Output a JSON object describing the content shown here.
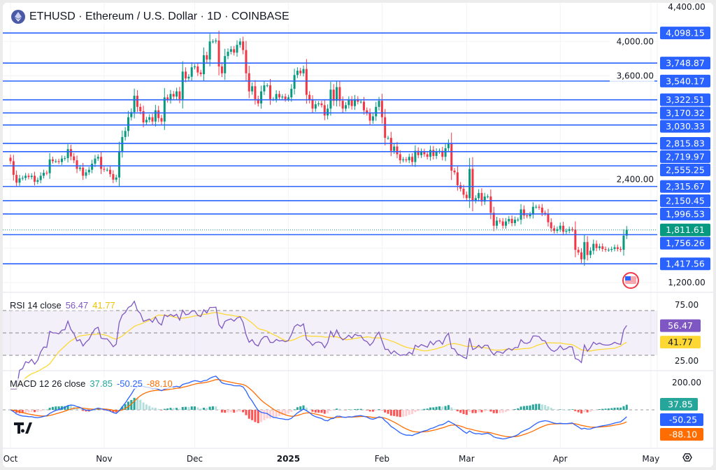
{
  "header": {
    "title": "ETHUSD · Ethereum / U.S. Dollar · 1D · COINBASE"
  },
  "colors": {
    "up": "#089981",
    "down": "#f23645",
    "level": "#2962ff",
    "rsi": "#7e57c2",
    "rsi_ma": "#fdd835",
    "macd": "#2962ff",
    "signal": "#ff6d00",
    "hist_up": "#26a69a",
    "hist_down": "#ff5252"
  },
  "chart_data": [
    {
      "type": "candlestick",
      "title": "ETHUSD · Ethereum / U.S. Dollar · 1D · COINBASE",
      "start_date": "2024-10-01",
      "ylim": [
        1200,
        4400
      ],
      "y_ticks": [
        {
          "v": 4400,
          "label": "4,400.00"
        },
        {
          "v": 4000,
          "label": "4,000.00"
        },
        {
          "v": 3600,
          "label": "3,600.00"
        },
        {
          "v": 2400,
          "label": "2,400.00"
        },
        {
          "v": 1200,
          "label": "1,200.00"
        }
      ],
      "x_ticks": [
        {
          "day": 0,
          "label": "Oct"
        },
        {
          "day": 31,
          "label": "Nov"
        },
        {
          "day": 61,
          "label": "Dec"
        },
        {
          "day": 92,
          "label": "2025",
          "bold": true
        },
        {
          "day": 123,
          "label": "Feb"
        },
        {
          "day": 151,
          "label": "Mar"
        },
        {
          "day": 182,
          "label": "Apr"
        },
        {
          "day": 212,
          "label": "May"
        }
      ],
      "closes": [
        2610,
        2450,
        2360,
        2410,
        2415,
        2440,
        2425,
        2440,
        2370,
        2390,
        2440,
        2475,
        2470,
        2630,
        2610,
        2610,
        2600,
        2640,
        2645,
        2750,
        2665,
        2620,
        2520,
        2535,
        2440,
        2480,
        2510,
        2580,
        2640,
        2660,
        2520,
        2510,
        2510,
        2460,
        2395,
        2420,
        2720,
        2890,
        2960,
        3120,
        3180,
        3370,
        3240,
        3190,
        3060,
        3090,
        3120,
        3070,
        3200,
        3110,
        3070,
        3350,
        3320,
        3390,
        3360,
        3420,
        3330,
        3650,
        3570,
        3590,
        3700,
        3710,
        3640,
        3620,
        3840,
        3790,
        4000,
        4000,
        4010,
        3710,
        3630,
        3830,
        3880,
        3910,
        3870,
        3960,
        4000,
        3900,
        3630,
        3420,
        3480,
        3330,
        3280,
        3420,
        3490,
        3490,
        3330,
        3330,
        3390,
        3350,
        3360,
        3330,
        3350,
        3450,
        3610,
        3660,
        3630,
        3680,
        3380,
        3320,
        3220,
        3270,
        3280,
        3260,
        3140,
        3220,
        3440,
        3310,
        3470,
        3310,
        3220,
        3260,
        3320,
        3250,
        3330,
        3300,
        3300,
        3200,
        3170,
        3080,
        3130,
        3240,
        3310,
        3120,
        2880,
        2880,
        2730,
        2780,
        2690,
        2620,
        2630,
        2620,
        2660,
        2600,
        2730,
        2680,
        2720,
        2690,
        2660,
        2740,
        2670,
        2720,
        2730,
        2660,
        2760,
        2820,
        2500,
        2480,
        2330,
        2290,
        2220,
        2180,
        2520,
        2150,
        2180,
        2240,
        2140,
        2200,
        2200,
        2010,
        1860,
        1920,
        1910,
        1860,
        1910,
        1940,
        1890,
        1930,
        1930,
        2050,
        1980,
        1970,
        1990,
        2080,
        2080,
        2070,
        2010,
        2000,
        1900,
        1830,
        1800,
        1820,
        1860,
        1790,
        1800,
        1820,
        1815,
        1580,
        1550,
        1470,
        1670,
        1520,
        1570,
        1650,
        1600,
        1620,
        1590,
        1580,
        1580,
        1590,
        1610,
        1590,
        1580,
        1745,
        1811.61
      ],
      "levels": [
        {
          "v": 4098.15,
          "label": "4,098.15"
        },
        {
          "v": 3748.87,
          "label": "3,748.87"
        },
        {
          "v": 3540.17,
          "label": "3,540.17"
        },
        {
          "v": 3322.51,
          "label": "3,322.51"
        },
        {
          "v": 3170.32,
          "label": "3,170.32"
        },
        {
          "v": 3030.33,
          "label": "3,030.33"
        },
        {
          "v": 2815.83,
          "label": "2,815.83"
        },
        {
          "v": 2719.97,
          "label": "2,719.97"
        },
        {
          "v": 2555.25,
          "label": "2,555.25"
        },
        {
          "v": 2315.67,
          "label": "2,315.67"
        },
        {
          "v": 2150.45,
          "label": "2,150.45"
        },
        {
          "v": 1996.53,
          "label": "1,996.53"
        },
        {
          "v": 1756.26,
          "label": "1,756.26"
        },
        {
          "v": 1417.56,
          "label": "1,417.56"
        }
      ],
      "last_price": {
        "v": 1811.61,
        "label": "1,811.61"
      }
    },
    {
      "type": "line",
      "title": "RSI 14 close",
      "ylim": [
        15,
        85
      ],
      "values_label": {
        "rsi": "56.47",
        "ma": "41.77"
      },
      "bands": [
        70,
        50,
        30
      ],
      "y_ticks": [
        {
          "v": 75,
          "label": "75.00"
        },
        {
          "v": 25,
          "label": "25.00"
        }
      ]
    },
    {
      "type": "line",
      "title": "MACD 12 26 close",
      "ylim": [
        -260,
        260
      ],
      "values_label": {
        "hist": "37.85",
        "macd": "-50.25",
        "signal": "-88.10"
      },
      "y_ticks": [
        {
          "v": 200,
          "label": "200.00"
        }
      ]
    }
  ]
}
